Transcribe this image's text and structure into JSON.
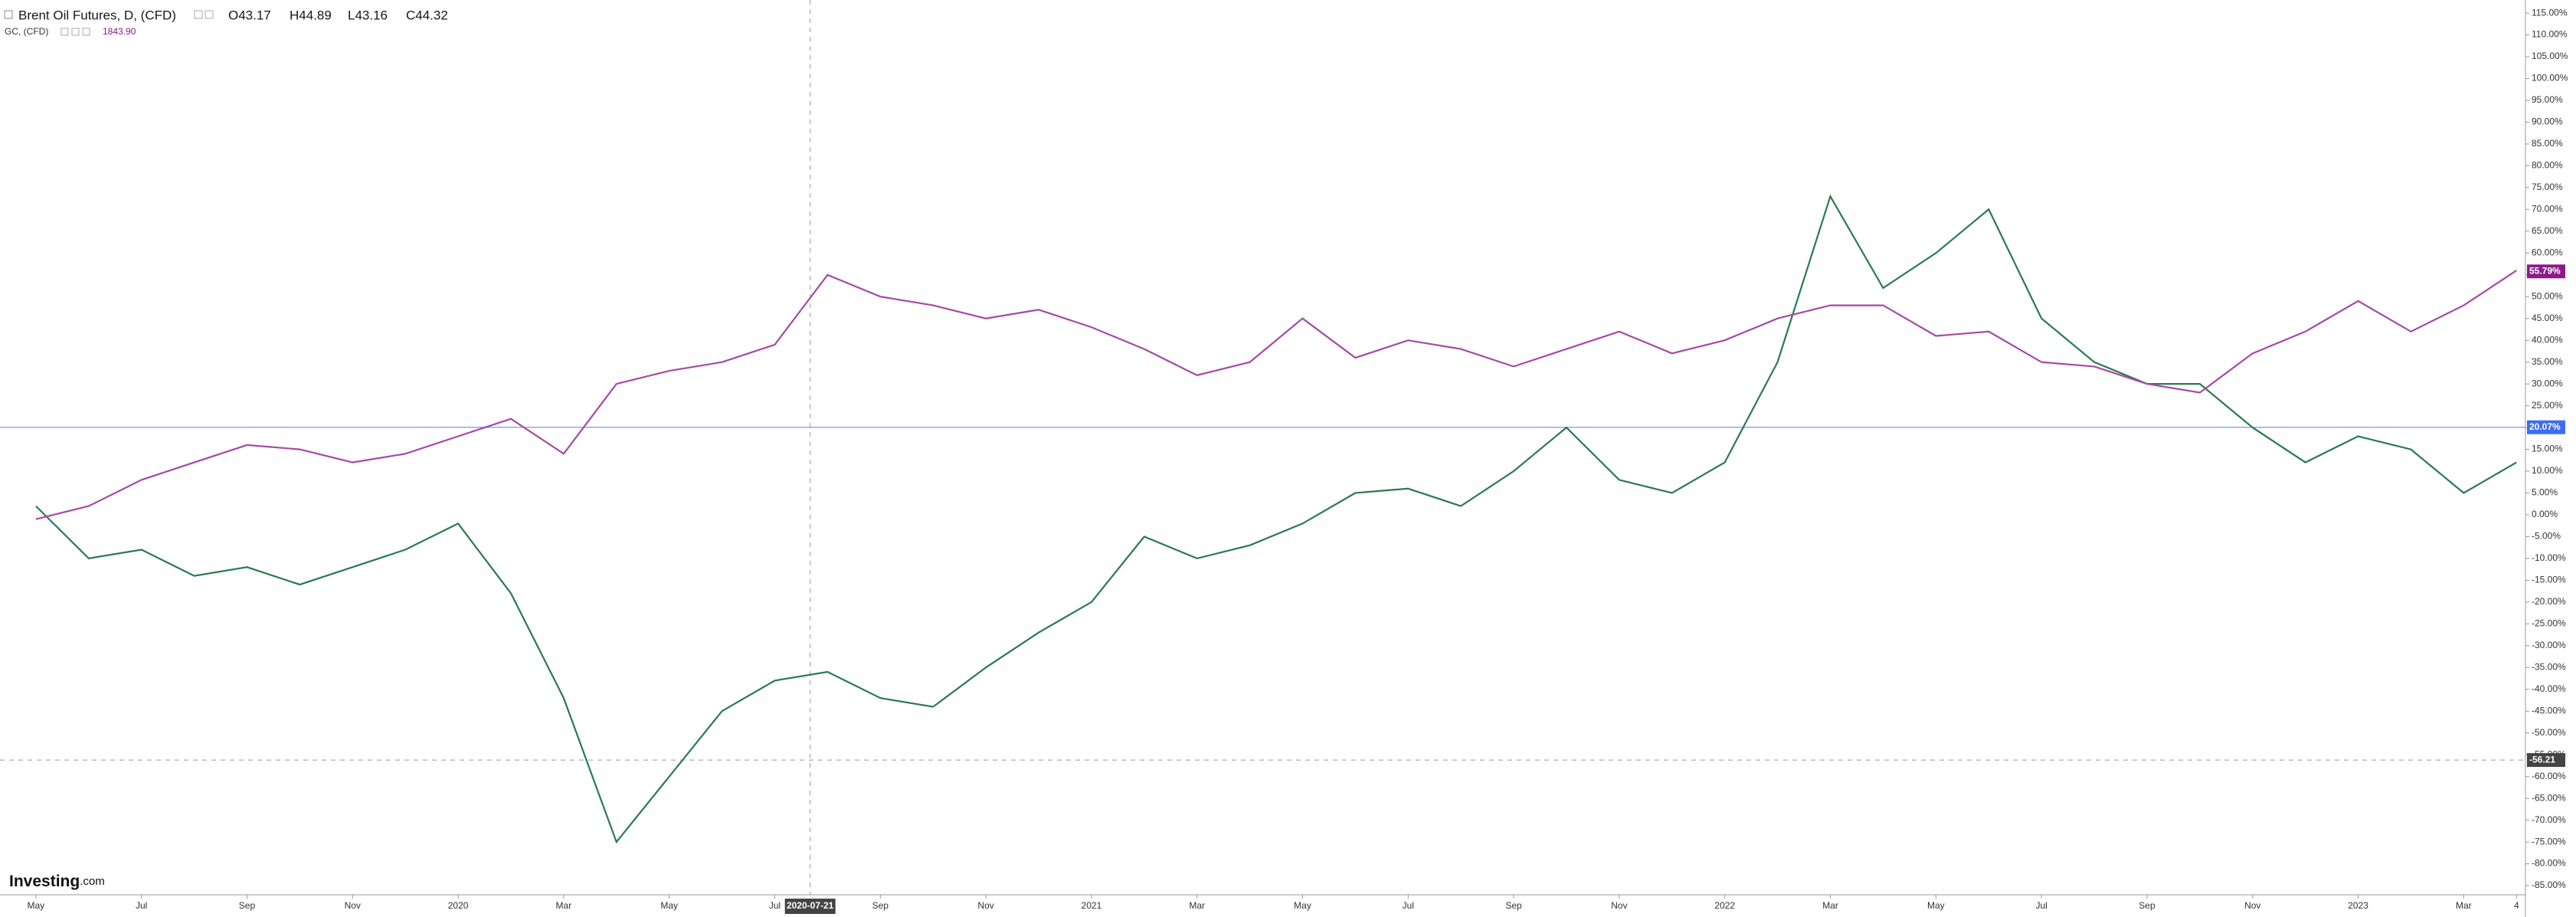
{
  "header": {
    "symbol": "Brent Oil Futures, D, (CFD)",
    "open": "O43.17",
    "high": "H44.89",
    "low": "L43.16",
    "close": "C44.32",
    "compare_symbol": "GC, (CFD)",
    "compare_value": "1843.90"
  },
  "logo": {
    "brand": "Investing",
    "suffix": ".com"
  },
  "chart_data": {
    "type": "line",
    "x": [
      0,
      1,
      2,
      3,
      4,
      5,
      6,
      7,
      8,
      9,
      10,
      11,
      12,
      13,
      14,
      15,
      16,
      17,
      18,
      19,
      20,
      21,
      22,
      23,
      24,
      25,
      26,
      27,
      28,
      29,
      30,
      31,
      32,
      33,
      34,
      35,
      36,
      37,
      38,
      39,
      40,
      41,
      42,
      43,
      44,
      45,
      46,
      47
    ],
    "series": [
      {
        "name": "Brent Oil Futures",
        "color": "#2a7a50",
        "values": [
          2,
          -10,
          -8,
          -14,
          -12,
          -16,
          -12,
          -8,
          -2,
          -18,
          -42,
          -75,
          -60,
          -45,
          -38,
          -36,
          -42,
          -44,
          -35,
          -27,
          -20,
          -5,
          -10,
          -7,
          -2,
          5,
          6,
          2,
          10,
          20,
          8,
          5,
          12,
          35,
          73,
          52,
          60,
          70,
          45,
          35,
          30,
          30,
          20,
          12,
          18,
          15,
          5,
          12
        ]
      },
      {
        "name": "GC",
        "color": "#a54aa5",
        "values": [
          -1,
          2,
          8,
          12,
          16,
          15,
          12,
          14,
          18,
          22,
          14,
          30,
          33,
          35,
          39,
          55,
          50,
          48,
          45,
          47,
          43,
          38,
          32,
          35,
          45,
          36,
          40,
          38,
          34,
          38,
          42,
          37,
          40,
          45,
          48,
          48,
          41,
          42,
          35,
          34,
          30,
          28,
          37,
          42,
          49,
          42,
          48,
          56
        ]
      }
    ],
    "xlim": [
      -0.68,
      47.17
    ],
    "xticks": [
      {
        "value": 0,
        "label": "May"
      },
      {
        "value": 2,
        "label": "Jul"
      },
      {
        "value": 4,
        "label": "Sep"
      },
      {
        "value": 6,
        "label": "Nov"
      },
      {
        "value": 8,
        "label": "2020"
      },
      {
        "value": 10,
        "label": "Mar"
      },
      {
        "value": 12,
        "label": "May"
      },
      {
        "value": 14,
        "label": "Jul"
      },
      {
        "value": 16,
        "label": "Sep"
      },
      {
        "value": 18,
        "label": "Nov"
      },
      {
        "value": 20,
        "label": "2021"
      },
      {
        "value": 22,
        "label": "Mar"
      },
      {
        "value": 24,
        "label": "May"
      },
      {
        "value": 26,
        "label": "Jul"
      },
      {
        "value": 28,
        "label": "Sep"
      },
      {
        "value": 30,
        "label": "Nov"
      },
      {
        "value": 32,
        "label": "2022"
      },
      {
        "value": 34,
        "label": "Mar"
      },
      {
        "value": 36,
        "label": "May"
      },
      {
        "value": 38,
        "label": "Jul"
      },
      {
        "value": 40,
        "label": "Sep"
      },
      {
        "value": 42,
        "label": "Nov"
      },
      {
        "value": 44,
        "label": "2023"
      },
      {
        "value": 46,
        "label": "Mar"
      },
      {
        "value": 47,
        "label": "4"
      }
    ],
    "ylim": [
      -87.1,
      118
    ],
    "yticks": [
      {
        "value": 115,
        "label": "115.00%"
      },
      {
        "value": 110,
        "label": "110.00%"
      },
      {
        "value": 105,
        "label": "105.00%"
      },
      {
        "value": 100,
        "label": "100.00%"
      },
      {
        "value": 95,
        "label": "95.00%"
      },
      {
        "value": 90,
        "label": "90.00%"
      },
      {
        "value": 85,
        "label": "85.00%"
      },
      {
        "value": 80,
        "label": "80.00%"
      },
      {
        "value": 75,
        "label": "75.00%"
      },
      {
        "value": 70,
        "label": "70.00%"
      },
      {
        "value": 65,
        "label": "65.00%"
      },
      {
        "value": 60,
        "label": "60.00%"
      },
      {
        "value": 55,
        "label": "55.00%"
      },
      {
        "value": 50,
        "label": "50.00%"
      },
      {
        "value": 45,
        "label": "45.00%"
      },
      {
        "value": 40,
        "label": "40.00%"
      },
      {
        "value": 35,
        "label": "35.00%"
      },
      {
        "value": 30,
        "label": "30.00%"
      },
      {
        "value": 25,
        "label": "25.00%"
      },
      {
        "value": 20,
        "label": "20.00%"
      },
      {
        "value": 15,
        "label": "15.00%"
      },
      {
        "value": 10,
        "label": "10.00%"
      },
      {
        "value": 5,
        "label": "5.00%"
      },
      {
        "value": 0,
        "label": "0.00%"
      },
      {
        "value": -5,
        "label": "-5.00%"
      },
      {
        "value": -10,
        "label": "-10.00%"
      },
      {
        "value": -15,
        "label": "-15.00%"
      },
      {
        "value": -20,
        "label": "-20.00%"
      },
      {
        "value": -25,
        "label": "-25.00%"
      },
      {
        "value": -30,
        "label": "-30.00%"
      },
      {
        "value": -35,
        "label": "-35.00%"
      },
      {
        "value": -40,
        "label": "-40.00%"
      },
      {
        "value": -45,
        "label": "-45.00%"
      },
      {
        "value": -50,
        "label": "-50.00%"
      },
      {
        "value": -55,
        "label": "-55.00%"
      },
      {
        "value": -60,
        "label": "-60.00%"
      },
      {
        "value": -65,
        "label": "-65.00%"
      },
      {
        "value": -70,
        "label": "-70.00%"
      },
      {
        "value": -75,
        "label": "-75.00%"
      },
      {
        "value": -80,
        "label": "-80.00%"
      },
      {
        "value": -85,
        "label": "-85.00%"
      }
    ],
    "grid": false,
    "price_line": {
      "value": 20.07,
      "label": "20.07%",
      "color": "#3d6df0"
    },
    "last_value": {
      "value": 55.79,
      "label": "55.79%",
      "color": "#8b1a89"
    },
    "crosshair": {
      "x": {
        "value": 14.67,
        "label": "2020-07-21"
      },
      "y": {
        "value": -56.21,
        "label": "-56.21"
      }
    }
  }
}
